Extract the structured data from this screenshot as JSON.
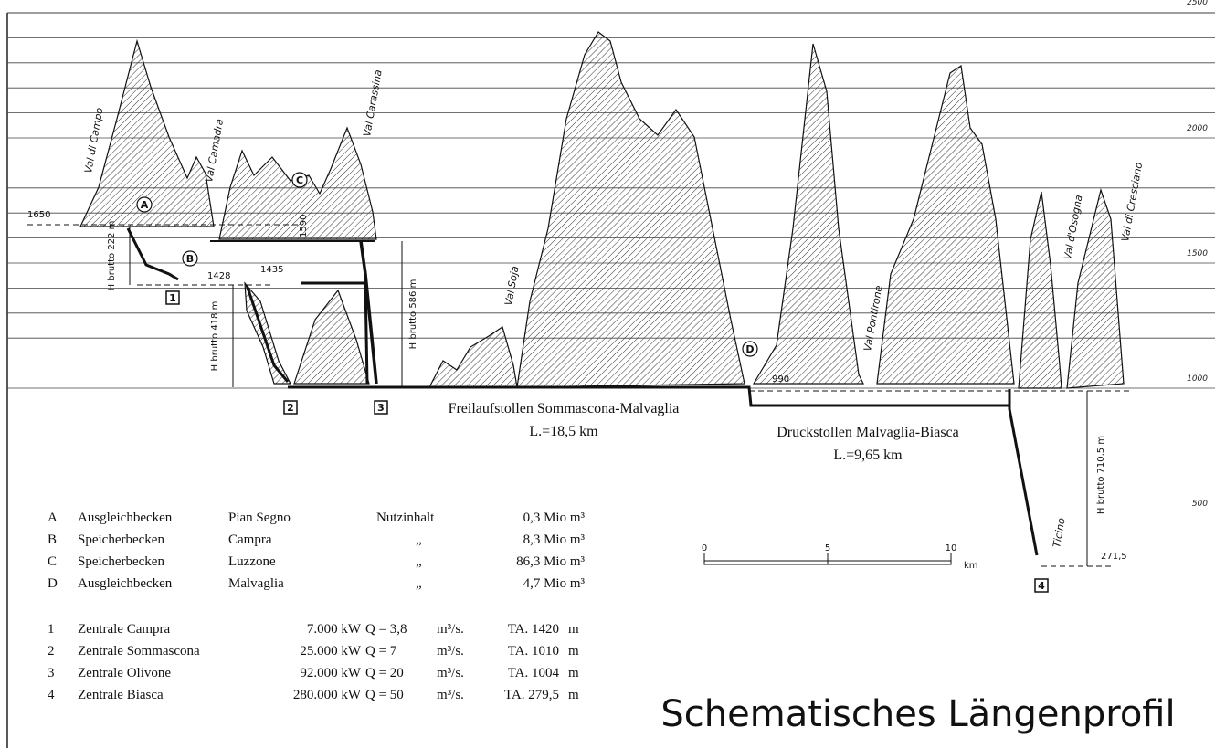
{
  "elevation_scale": [
    "2500",
    "2000",
    "1500",
    "1000",
    "500"
  ],
  "valleys": [
    "Val di Campo",
    "Val Camadra",
    "Val Carassina",
    "Val Soja",
    "Val Pontirone",
    "Val d'Osogna",
    "Val di Cresciano",
    "Ticino"
  ],
  "basins_markers": [
    "A",
    "B",
    "C",
    "D"
  ],
  "stations_markers": [
    "1",
    "2",
    "3",
    "4"
  ],
  "levels": [
    "1650",
    "1428",
    "1435",
    "1590",
    "990",
    "271,5"
  ],
  "heads": [
    "H brutto 222 m",
    "H brutto 418 m",
    "H brutto 586 m",
    "H brutto 710,5 m"
  ],
  "tunnels": [
    {
      "name": "Freilaufstollen Sommascona-Malvaglia",
      "length": "L.=18,5 km"
    },
    {
      "name": "Druckstollen Malvaglia-Biasca",
      "length": "L.=9,65 km"
    }
  ],
  "scale_bar": [
    "0",
    "5",
    "10",
    "km"
  ],
  "basins": {
    "rows": [
      [
        "A",
        "Ausgleichbecken",
        "Pian Segno",
        "Nutzinhalt",
        "0,3 Mio m³"
      ],
      [
        "B",
        "Speicherbecken",
        "Campra",
        "„",
        "8,3 Mio m³"
      ],
      [
        "C",
        "Speicherbecken",
        "Luzzone",
        "„",
        "86,3 Mio m³"
      ],
      [
        "D",
        "Ausgleichbecken",
        "Malvaglia",
        "„",
        "4,7 Mio m³"
      ]
    ]
  },
  "stations": {
    "rows": [
      [
        "1",
        "Zentrale Campra",
        "7.000 kW",
        "Q = 3,8",
        "m³/s.",
        "TA. 1420",
        "m"
      ],
      [
        "2",
        "Zentrale Sommascona",
        "25.000 kW",
        "Q = 7",
        "m³/s.",
        "TA. 1010",
        "m"
      ],
      [
        "3",
        "Zentrale Olivone",
        "92.000 kW",
        "Q = 20",
        "m³/s.",
        "TA. 1004",
        "m"
      ],
      [
        "4",
        "Zentrale Biasca",
        "280.000 kW",
        "Q = 50",
        "m³/s.",
        "TA. 279,5",
        "m"
      ]
    ]
  },
  "title": "Schematisches Längenprofil"
}
